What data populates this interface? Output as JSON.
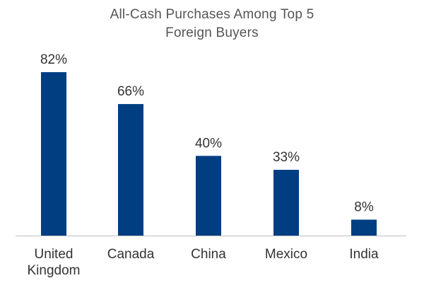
{
  "chart_data": {
    "type": "bar",
    "title_lines": [
      "All-Cash Purchases Among Top 5",
      "Foreign Buyers"
    ],
    "title": "All-Cash Purchases Among Top 5 Foreign Buyers",
    "categories": [
      [
        "United",
        "Kingdom"
      ],
      [
        "Canada"
      ],
      [
        "China"
      ],
      [
        "Mexico"
      ],
      [
        "India"
      ]
    ],
    "values": [
      82,
      66,
      40,
      33,
      8
    ],
    "value_labels": [
      "82%",
      "66%",
      "40%",
      "33%",
      "8%"
    ],
    "unit": "%",
    "ylim": [
      0,
      82
    ],
    "grid": false,
    "legend": "none",
    "xlabel": "",
    "ylabel": "",
    "colors": {
      "bar": "#003e82",
      "axis": "#bfbfbf",
      "label": "#333333",
      "title": "#555555"
    }
  }
}
